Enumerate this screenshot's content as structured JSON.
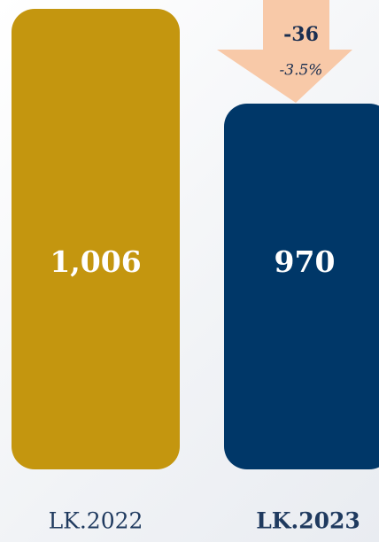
{
  "chart_data": {
    "type": "bar",
    "categories": [
      "LK.2022",
      "LK.2023"
    ],
    "values": [
      1006,
      970
    ],
    "value_labels": [
      "1,006",
      "970"
    ],
    "colors": [
      "#c4960f",
      "#003768"
    ],
    "ylim": [
      831,
      1006
    ],
    "highlight": 1,
    "annotation": {
      "change": "-36",
      "percent": "-3.5%",
      "color": "#f8c9a8"
    }
  }
}
